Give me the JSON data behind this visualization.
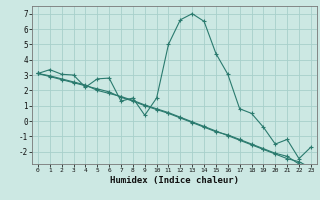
{
  "xlabel": "Humidex (Indice chaleur)",
  "x": [
    0,
    1,
    2,
    3,
    4,
    5,
    6,
    7,
    8,
    9,
    10,
    11,
    12,
    13,
    14,
    15,
    16,
    17,
    18,
    19,
    20,
    21,
    22,
    23
  ],
  "line1": [
    3.1,
    3.35,
    3.05,
    3.0,
    2.2,
    2.75,
    2.8,
    1.3,
    1.5,
    0.38,
    1.5,
    5.0,
    6.6,
    7.0,
    6.5,
    4.4,
    3.05,
    0.8,
    0.5,
    -0.4,
    -1.5,
    -1.2,
    -2.45,
    -1.7
  ],
  "line2": [
    3.1,
    2.9,
    2.7,
    2.5,
    2.3,
    2.1,
    1.9,
    1.55,
    1.3,
    1.0,
    0.75,
    0.5,
    0.2,
    -0.1,
    -0.4,
    -0.7,
    -0.9,
    -1.2,
    -1.5,
    -1.8,
    -2.1,
    -2.3,
    -2.8,
    -3.2
  ],
  "line3": [
    3.1,
    2.95,
    2.75,
    2.55,
    2.35,
    2.0,
    1.8,
    1.6,
    1.35,
    1.05,
    0.8,
    0.55,
    0.25,
    -0.05,
    -0.35,
    -0.65,
    -0.95,
    -1.25,
    -1.55,
    -1.85,
    -2.15,
    -2.45,
    -2.65,
    -3.05
  ],
  "line_color": "#2a7a6e",
  "bg_color": "#cce8e3",
  "grid_color": "#a8d0cb",
  "ylim": [
    -2.8,
    7.5
  ],
  "xlim": [
    -0.5,
    23.5
  ],
  "yticks": [
    -2,
    -1,
    0,
    1,
    2,
    3,
    4,
    5,
    6,
    7
  ]
}
